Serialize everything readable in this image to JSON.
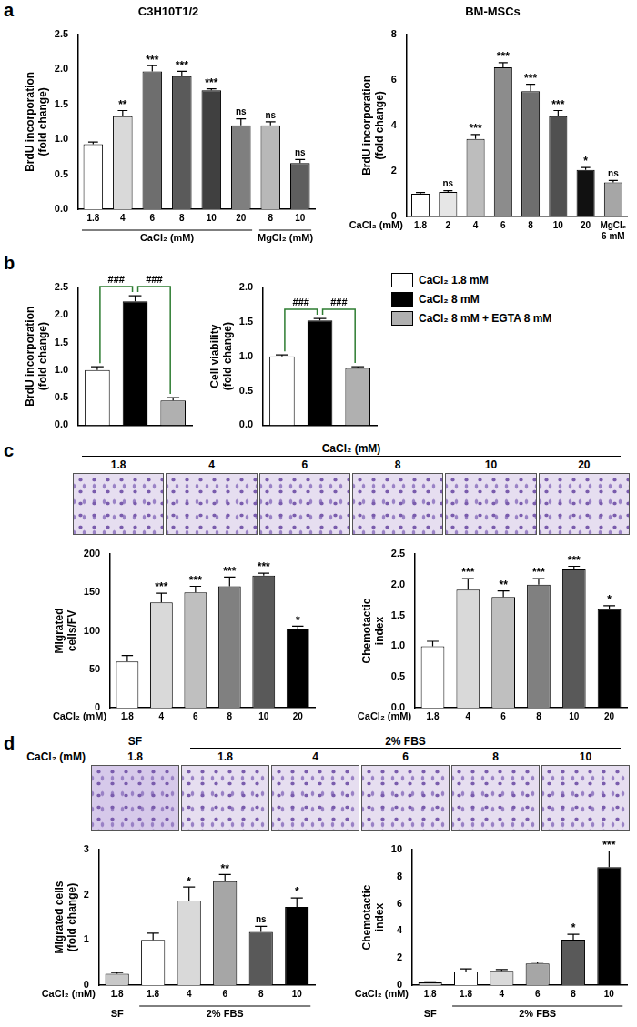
{
  "panels": [
    "a",
    "b",
    "c",
    "d"
  ],
  "chart_data": [
    {
      "type": "bar",
      "title": "C3H10T1/2",
      "y_label": "BrdU incorporation (fold change)",
      "categories": [
        "1.8",
        "4",
        "6",
        "8",
        "10",
        "20",
        "8",
        "10"
      ],
      "groups": [
        {
          "label": "CaCl₂ (mM)",
          "count": 6
        },
        {
          "label": "MgCl₂ (mM)",
          "count": 2
        }
      ],
      "values": [
        0.93,
        1.33,
        1.97,
        1.9,
        1.7,
        1.2,
        1.2,
        0.66
      ],
      "errors": [
        0.03,
        0.08,
        0.08,
        0.07,
        0.02,
        0.09,
        0.05,
        0.05
      ],
      "annotations": [
        null,
        "**",
        "***",
        "***",
        "***",
        "ns",
        "ns",
        "ns"
      ],
      "colors": [
        "#ffffff",
        "#d9d9d9",
        "#6e6e6e",
        "#5a5a5a",
        "#404040",
        "#7f7f7f",
        "#b8b8b8",
        "#5e5e5e"
      ],
      "ylim": [
        0,
        2.5
      ],
      "yticks": [
        {
          "value": 0,
          "label": "0.0"
        },
        0.5,
        {
          "value": 1,
          "label": "1.0"
        },
        1.5,
        {
          "value": 2,
          "label": "2.0"
        },
        2.5
      ],
      "grid": false
    },
    {
      "type": "bar",
      "title": "BM-MSCs",
      "y_label": "BrdU incorporation (fold change)",
      "x_label": "CaCl₂ (mM)",
      "categories": [
        "1.8",
        "2",
        "4",
        "6",
        "8",
        "10",
        "20",
        "MgCl₂ 6 mM"
      ],
      "values": [
        1.0,
        1.08,
        3.4,
        6.55,
        5.5,
        4.4,
        2.05,
        1.5
      ],
      "errors": [
        0.05,
        0.05,
        0.2,
        0.2,
        0.3,
        0.25,
        0.1,
        0.08
      ],
      "annotations": [
        null,
        "ns",
        "***",
        "***",
        "***",
        "***",
        "*",
        "ns"
      ],
      "colors": [
        "#ffffff",
        "#e6e6e6",
        "#bdbdbd",
        "#8c8c8c",
        "#6e6e6e",
        "#505050",
        "#111111",
        "#a6a6a6"
      ],
      "ylim": [
        0,
        8
      ],
      "yticks": [
        0,
        2,
        4,
        6,
        8
      ],
      "grid": false
    },
    {
      "type": "bar",
      "y_label": "BrdU incorporation (fold change)",
      "categories": [
        null,
        null,
        null
      ],
      "values": [
        1.0,
        2.25,
        0.45
      ],
      "errors": [
        0.06,
        0.1,
        0.05
      ],
      "brackets": [
        {
          "from": 0,
          "to": 1,
          "label": "###"
        },
        {
          "from": 1,
          "to": 2,
          "label": "###"
        }
      ],
      "colors": [
        "#ffffff",
        "#000000",
        "#b0b0b0"
      ],
      "tick_labels": "y",
      "ylim": [
        0,
        2.5
      ],
      "yticks": [
        {
          "value": 0,
          "label": "0.0"
        },
        0.5,
        {
          "value": 1,
          "label": "1.0"
        },
        1.5,
        {
          "value": 2,
          "label": "2.0"
        },
        2.5
      ],
      "grid": false
    },
    {
      "type": "bar",
      "y_label": "Cell viability (fold change)",
      "categories": [
        null,
        null,
        null
      ],
      "values": [
        1.0,
        1.52,
        0.83
      ],
      "errors": [
        0.02,
        0.03,
        0.02
      ],
      "brackets": [
        {
          "from": 0,
          "to": 1,
          "label": "###"
        },
        {
          "from": 1,
          "to": 2,
          "label": "###"
        }
      ],
      "colors": [
        "#ffffff",
        "#000000",
        "#b0b0b0"
      ],
      "tick_labels": "y",
      "ylim": [
        0,
        2.0
      ],
      "yticks": [
        {
          "value": 0,
          "label": "0.0"
        },
        0.5,
        {
          "value": 1,
          "label": "1.0"
        },
        1.5,
        {
          "value": 2,
          "label": "2.0"
        }
      ],
      "grid": false
    },
    {
      "type": "bar",
      "y_label": "Migrated cells/FV",
      "x_label": "CaCl₂ (mM)",
      "categories": [
        "1.8",
        "4",
        "6",
        "8",
        "10",
        "20"
      ],
      "values": [
        60,
        137,
        150,
        158,
        172,
        103
      ],
      "errors": [
        8,
        12,
        8,
        12,
        3,
        3
      ],
      "annotations": [
        null,
        "***",
        "***",
        "***",
        "***",
        "*"
      ],
      "colors": [
        "#ffffff",
        "#d9d9d9",
        "#bfbfbf",
        "#808080",
        "#595959",
        "#000000"
      ],
      "ylim": [
        0,
        200
      ],
      "yticks": [
        0,
        50,
        100,
        150,
        200
      ],
      "grid": false
    },
    {
      "type": "bar",
      "y_label": "Chemotactic index",
      "x_label": "CaCl₂ (mM)",
      "categories": [
        "1.8",
        "4",
        "6",
        "8",
        "10",
        "20"
      ],
      "values": [
        1.0,
        1.92,
        1.8,
        2.0,
        2.25,
        1.6
      ],
      "errors": [
        0.08,
        0.18,
        0.1,
        0.1,
        0.05,
        0.06
      ],
      "annotations": [
        null,
        "***",
        "**",
        "***",
        "***",
        "*"
      ],
      "colors": [
        "#ffffff",
        "#d9d9d9",
        "#bfbfbf",
        "#808080",
        "#595959",
        "#000000"
      ],
      "ylim": [
        0,
        2.5
      ],
      "yticks": [
        {
          "value": 0,
          "label": "0.0"
        },
        0.5,
        {
          "value": 1,
          "label": "1.0"
        },
        1.5,
        {
          "value": 2,
          "label": "2.0"
        },
        2.5
      ],
      "grid": false
    },
    {
      "type": "bar",
      "y_label": "Migrated cells (fold change)",
      "x_label": "CaCl₂ (mM)",
      "categories": [
        "1.8",
        "1.8",
        "4",
        "6",
        "8",
        "10"
      ],
      "groups": [
        {
          "label": "SF",
          "count": 1
        },
        {
          "label": "2% FBS",
          "count": 5
        }
      ],
      "values": [
        0.25,
        1.0,
        1.87,
        2.3,
        1.18,
        1.73
      ],
      "errors": [
        0.03,
        0.15,
        0.3,
        0.15,
        0.12,
        0.2
      ],
      "annotations": [
        null,
        null,
        "*",
        "**",
        "ns",
        "*"
      ],
      "colors": [
        "#c8c8c8",
        "#ffffff",
        "#d9d9d9",
        "#a6a6a6",
        "#595959",
        "#000000"
      ],
      "ylim": [
        0,
        3
      ],
      "yticks": [
        0,
        1,
        2,
        3
      ],
      "grid": false
    },
    {
      "type": "bar",
      "y_label": "Chemotactic index",
      "x_label": "CaCl₂ (mM)",
      "categories": [
        "1.8",
        "1.8",
        "4",
        "6",
        "8",
        "10"
      ],
      "groups": [
        {
          "label": "SF",
          "count": 1
        },
        {
          "label": "2% FBS",
          "count": 5
        }
      ],
      "values": [
        0.2,
        1.0,
        1.05,
        1.6,
        3.35,
        8.7
      ],
      "errors": [
        0.05,
        0.2,
        0.1,
        0.1,
        0.4,
        1.2
      ],
      "annotations": [
        null,
        null,
        null,
        null,
        "*",
        "***"
      ],
      "colors": [
        "#c8c8c8",
        "#ffffff",
        "#d9d9d9",
        "#a6a6a6",
        "#595959",
        "#000000"
      ],
      "ylim": [
        0,
        10
      ],
      "yticks": [
        0,
        2,
        4,
        6,
        8,
        10
      ],
      "grid": false
    }
  ],
  "shared_legend": {
    "position": "right",
    "entries": [
      {
        "name": "CaCl₂ 1.8 mM",
        "color": "#ffffff"
      },
      {
        "name": "CaCl₂ 8 mM",
        "color": "#000000"
      },
      {
        "name": "CaCl₂ 8 mM + EGTA 8 mM",
        "color": "#b0b0b0"
      }
    ]
  },
  "image_strips": [
    {
      "title": "CaCl₂ (mM)",
      "labels": [
        "1.8",
        "4",
        "6",
        "8",
        "10",
        "20"
      ]
    },
    {
      "x_label": "CaCl₂ (mM)",
      "groups": [
        {
          "label": "SF",
          "count": 1
        },
        {
          "label": "2% FBS",
          "count": 5
        }
      ],
      "labels": [
        "1.8",
        "1.8",
        "4",
        "6",
        "8",
        "10"
      ]
    }
  ]
}
